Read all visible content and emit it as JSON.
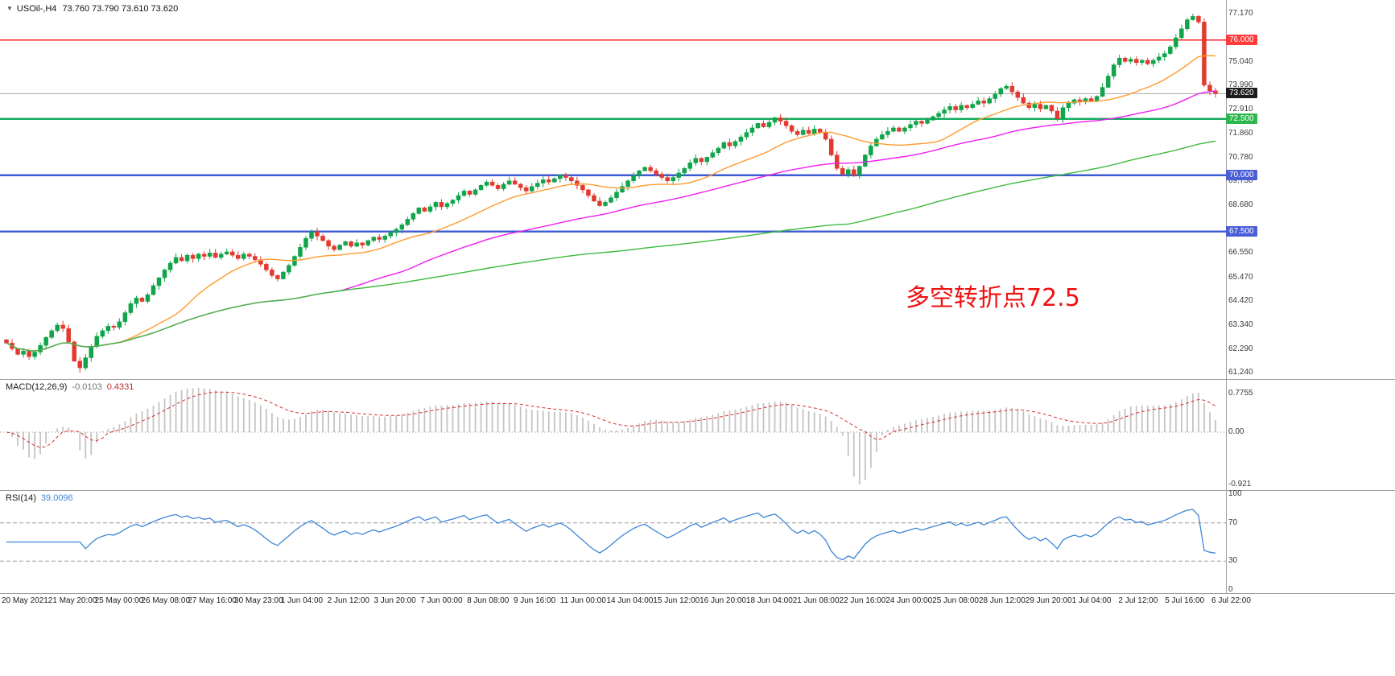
{
  "header": {
    "symbol_title": "USOil-,H4",
    "ohlc_text": "73.760 73.790 73.610 73.620"
  },
  "annotation": {
    "text": "多空转折点72.5",
    "color": "#f01010"
  },
  "chart_data": {
    "type": "candlestick",
    "symbol": "USOil-",
    "timeframe": "H4",
    "title": "USOil-,H4 73.760 73.790 73.610 73.620",
    "ohlc": {
      "open": 73.76,
      "high": 73.79,
      "low": 73.61,
      "close": 73.62
    },
    "price_axis": {
      "min": 61.24,
      "max": 77.17,
      "plain_ticks": [
        77.17,
        75.04,
        73.99,
        72.91,
        71.86,
        70.78,
        69.73,
        68.68,
        66.55,
        65.47,
        64.42,
        63.34,
        62.29,
        61.24
      ]
    },
    "hlines": [
      {
        "price": 76.0,
        "label": "76.000",
        "color": "#ff1e1e",
        "badge": "#ff3b3b",
        "width": 1.6
      },
      {
        "price": 72.5,
        "label": "72.500",
        "color": "#00a651",
        "badge": "#2db84d",
        "width": 2.2
      },
      {
        "price": 70.0,
        "label": "70.000",
        "color": "#3c5bd2",
        "badge": "#4a5fd6",
        "width": 2.4
      },
      {
        "price": 67.5,
        "label": "67.500",
        "color": "#3c5bd2",
        "badge": "#4a5fd6",
        "width": 2.4
      }
    ],
    "current_price": {
      "value": 73.62,
      "label": "73.620",
      "line_color": "#a8a8a8",
      "badge": "#1c1c1c"
    },
    "candles": {
      "up_color": "#10a54a",
      "down_color": "#e23a2e",
      "closes": [
        62.55,
        62.3,
        62.05,
        62.2,
        61.95,
        62.15,
        62.45,
        62.8,
        63.1,
        63.35,
        63.2,
        62.6,
        61.75,
        61.45,
        61.9,
        62.4,
        62.85,
        63.1,
        63.3,
        63.25,
        63.5,
        63.9,
        64.3,
        64.55,
        64.4,
        64.7,
        65.1,
        65.45,
        65.8,
        66.1,
        66.35,
        66.2,
        66.45,
        66.3,
        66.5,
        66.4,
        66.55,
        66.35,
        66.5,
        66.6,
        66.45,
        66.3,
        66.5,
        66.4,
        66.25,
        66.05,
        65.8,
        65.55,
        65.4,
        65.7,
        66.0,
        66.4,
        66.8,
        67.2,
        67.5,
        67.3,
        67.1,
        66.85,
        66.7,
        66.9,
        67.05,
        66.85,
        67.0,
        66.9,
        67.1,
        67.25,
        67.15,
        67.3,
        67.45,
        67.6,
        67.8,
        68.05,
        68.3,
        68.55,
        68.4,
        68.6,
        68.8,
        68.6,
        68.75,
        68.9,
        69.1,
        69.3,
        69.15,
        69.35,
        69.55,
        69.7,
        69.55,
        69.4,
        69.6,
        69.75,
        69.6,
        69.45,
        69.3,
        69.5,
        69.65,
        69.8,
        69.7,
        69.85,
        70.0,
        69.9,
        69.75,
        69.55,
        69.35,
        69.1,
        68.85,
        68.65,
        68.8,
        69.0,
        69.25,
        69.5,
        69.75,
        70.0,
        70.2,
        70.35,
        70.2,
        70.05,
        69.9,
        69.75,
        69.9,
        70.1,
        70.3,
        70.55,
        70.75,
        70.6,
        70.8,
        71.0,
        71.2,
        71.45,
        71.3,
        71.5,
        71.7,
        71.9,
        72.1,
        72.3,
        72.15,
        72.35,
        72.55,
        72.4,
        72.2,
        71.95,
        71.8,
        72.0,
        71.85,
        72.05,
        71.9,
        71.6,
        70.9,
        70.3,
        70.05,
        70.25,
        70.0,
        70.4,
        70.9,
        71.3,
        71.6,
        71.8,
        71.95,
        72.1,
        71.95,
        72.1,
        72.25,
        72.4,
        72.3,
        72.45,
        72.6,
        72.75,
        72.9,
        73.05,
        72.9,
        73.1,
        73.0,
        73.15,
        73.3,
        73.2,
        73.4,
        73.6,
        73.85,
        73.95,
        73.7,
        73.45,
        73.2,
        73.0,
        73.15,
        72.95,
        73.1,
        72.85,
        72.5,
        73.0,
        73.2,
        73.35,
        73.25,
        73.4,
        73.3,
        73.5,
        73.9,
        74.4,
        74.9,
        75.2,
        75.05,
        75.15,
        75.0,
        75.1,
        74.95,
        75.1,
        75.25,
        75.4,
        75.7,
        76.1,
        76.5,
        76.9,
        77.05,
        76.8,
        74.0,
        73.75,
        73.62
      ]
    },
    "moving_averages": [
      {
        "name": "ma-fast",
        "period": 20,
        "color": "#ff9b2f"
      },
      {
        "name": "ma-mid",
        "period": 60,
        "color": "#f01ef0"
      },
      {
        "name": "ma-slow",
        "period": 150,
        "color": "#3dbb3d"
      }
    ],
    "x_labels": [
      "20 May 2021",
      "21 May 20:00",
      "25 May 00:00",
      "26 May 08:00",
      "27 May 16:00",
      "30 May 23:00",
      "1 Jun 04:00",
      "2 Jun 12:00",
      "3 Jun 20:00",
      "7 Jun 00:00",
      "8 Jun 08:00",
      "9 Jun 16:00",
      "11 Jun 00:00",
      "14 Jun 04:00",
      "15 Jun 12:00",
      "16 Jun 20:00",
      "18 Jun 04:00",
      "21 Jun 08:00",
      "22 Jun 16:00",
      "24 Jun 00:00",
      "25 Jun 08:00",
      "28 Jun 12:00",
      "29 Jun 20:00",
      "1 Jul 04:00",
      "2 Jul 12:00",
      "5 Jul 16:00",
      "6 Jul 22:00"
    ],
    "macd": {
      "label": "MACD(12,26,9)",
      "value_main": "-0.0103",
      "value_signal": "0.4331",
      "fast": 12,
      "slow": 26,
      "signal": 9,
      "axis": {
        "max": "0.7755",
        "zero": "0.00",
        "min": "-0.921"
      },
      "hist_color": "#c4c4c4",
      "signal_color": "#d82f2f"
    },
    "rsi": {
      "label": "RSI(14)",
      "value": "39.0096",
      "period": 14,
      "line_color": "#3e86d8",
      "axis_ticks": [
        "100",
        "70",
        "30",
        "0"
      ],
      "guide_levels": [
        70,
        30
      ]
    }
  }
}
